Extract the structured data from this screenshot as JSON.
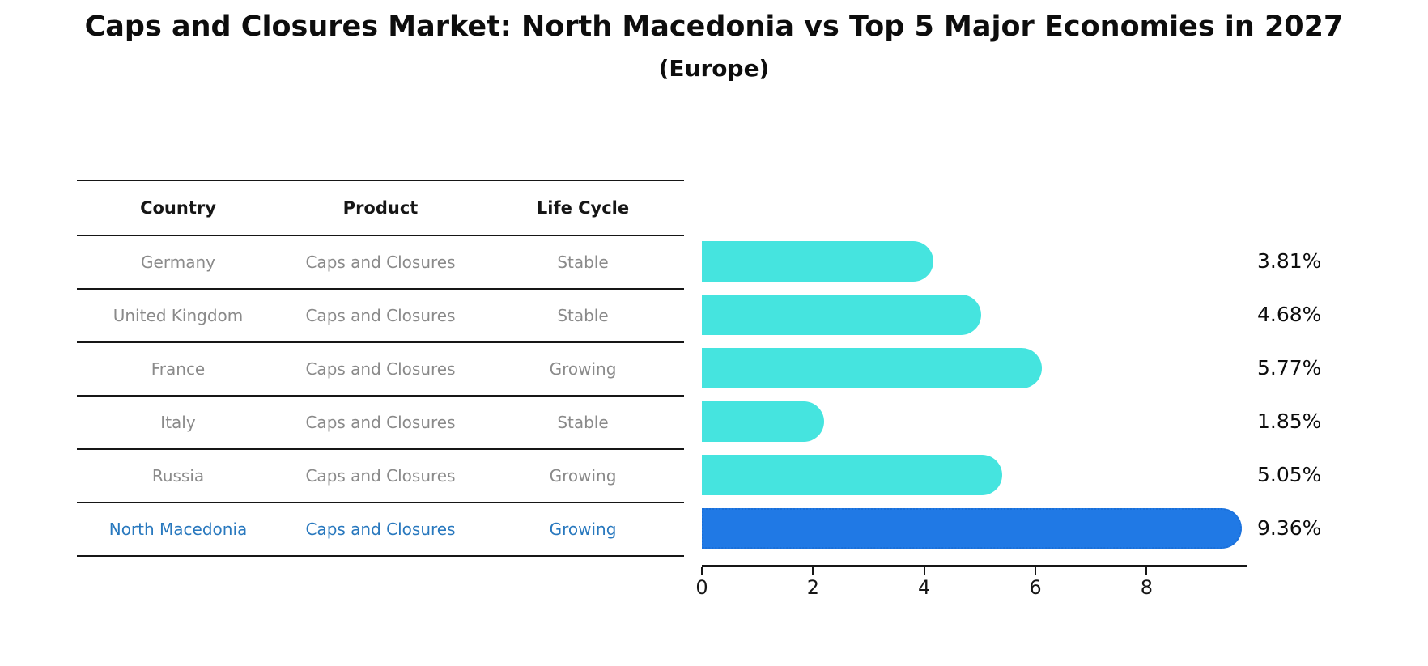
{
  "page": {
    "title": "Caps and Closures Market: North Macedonia vs Top 5 Major Economies in 2027",
    "subtitle": "(Europe)"
  },
  "table": {
    "headers": {
      "country": "Country",
      "product": "Product",
      "life_cycle": "Life Cycle"
    },
    "rows": [
      {
        "country": "Germany",
        "product": "Caps and Closures",
        "life_cycle": "Stable",
        "highlight": false
      },
      {
        "country": "United Kingdom",
        "product": "Caps and Closures",
        "life_cycle": "Stable",
        "highlight": false
      },
      {
        "country": "France",
        "product": "Caps and Closures",
        "life_cycle": "Growing",
        "highlight": false
      },
      {
        "country": "Italy",
        "product": "Caps and Closures",
        "life_cycle": "Stable",
        "highlight": false
      },
      {
        "country": "Russia",
        "product": "Caps and Closures",
        "life_cycle": "Growing",
        "highlight": false
      },
      {
        "country": "North Macedonia",
        "product": "Caps and Closures",
        "life_cycle": "Growing",
        "highlight": true
      }
    ]
  },
  "chart_data": {
    "type": "bar",
    "orientation": "horizontal",
    "title": "Caps and Closures Market: North Macedonia vs Top 5 Major Economies in 2027",
    "subtitle": "(Europe)",
    "categories": [
      "Germany",
      "United Kingdom",
      "France",
      "Italy",
      "Russia",
      "North Macedonia"
    ],
    "values": [
      3.81,
      4.68,
      5.77,
      1.85,
      5.05,
      9.36
    ],
    "value_labels": [
      "3.81%",
      "4.68%",
      "5.77%",
      "1.85%",
      "5.05%",
      "9.36%"
    ],
    "xlabel": "",
    "ylabel": "",
    "xlim": [
      0,
      9.8
    ],
    "xticks": [
      0,
      2,
      4,
      6,
      8
    ],
    "grid": false,
    "legend": "none",
    "highlight_index": 5,
    "bar_color": "#45e4df",
    "highlight_bar_color": "#2079e5",
    "highlight_border_color": "#1a6fd8"
  },
  "colors": {
    "bar": "#45e4df",
    "highlight_bar": "#2079e5",
    "highlight_border": "#1a6fd8",
    "highlight_text": "#2878be",
    "row_text": "#8a8a8a",
    "axis": "#161616"
  }
}
